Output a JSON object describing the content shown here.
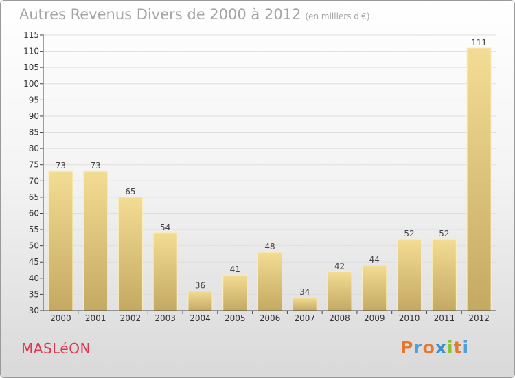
{
  "header": {
    "title": "Autres Revenus Divers de 2000 à 2012",
    "unit": "(en milliers d'€)"
  },
  "footer": {
    "commune": "MASLéON",
    "logo": {
      "text": "Proxiti",
      "colors": [
        "#e6772e",
        "#4da0d8",
        "#e6772e",
        "#3f8ed0",
        "#8bbf2e",
        "#e6772e",
        "#4da0d8"
      ]
    }
  },
  "chart_data": {
    "type": "bar",
    "categories": [
      "2000",
      "2001",
      "2002",
      "2003",
      "2004",
      "2005",
      "2006",
      "2007",
      "2008",
      "2009",
      "2010",
      "2011",
      "2012"
    ],
    "values": [
      73,
      73,
      65,
      54,
      36,
      41,
      48,
      34,
      42,
      44,
      52,
      52,
      111
    ],
    "ylim": [
      30,
      115
    ],
    "yticks": [
      30,
      35,
      40,
      45,
      50,
      55,
      60,
      65,
      70,
      75,
      80,
      85,
      90,
      95,
      100,
      105,
      110,
      115
    ],
    "grid": true,
    "bar_color": "#e8cc7c"
  }
}
